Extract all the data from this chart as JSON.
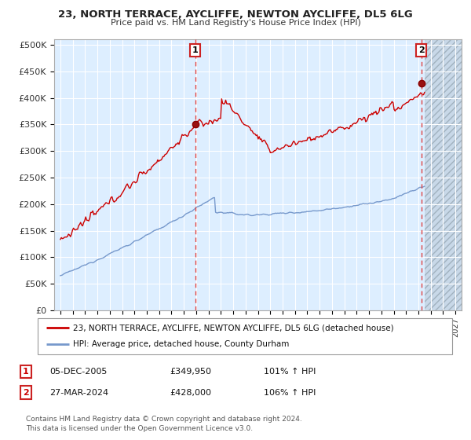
{
  "title": "23, NORTH TERRACE, AYCLIFFE, NEWTON AYCLIFFE, DL5 6LG",
  "subtitle": "Price paid vs. HM Land Registry's House Price Index (HPI)",
  "legend_line1": "23, NORTH TERRACE, AYCLIFFE, NEWTON AYCLIFFE, DL5 6LG (detached house)",
  "legend_line2": "HPI: Average price, detached house, County Durham",
  "sale1_date": "05-DEC-2005",
  "sale1_price": "£349,950",
  "sale1_hpi": "101% ↑ HPI",
  "sale2_date": "27-MAR-2024",
  "sale2_price": "£428,000",
  "sale2_hpi": "106% ↑ HPI",
  "footer": "Contains HM Land Registry data © Crown copyright and database right 2024.\nThis data is licensed under the Open Government Licence v3.0.",
  "red_color": "#cc0000",
  "blue_color": "#7799cc",
  "bg_color": "#ddeeff",
  "grid_color": "#ffffff",
  "dashed_line_color": "#dd4444",
  "sale1_year": 2005.92,
  "sale2_year": 2024.23,
  "sale1_value": 349950,
  "sale2_value": 428000,
  "ylim": [
    0,
    510000
  ],
  "xlim_start": 1994.5,
  "xlim_end": 2027.5,
  "yticks": [
    0,
    50000,
    100000,
    150000,
    200000,
    250000,
    300000,
    350000,
    400000,
    450000,
    500000
  ],
  "ytick_labels": [
    "£0",
    "£50K",
    "£100K",
    "£150K",
    "£200K",
    "£250K",
    "£300K",
    "£350K",
    "£400K",
    "£450K",
    "£500K"
  ],
  "xticks": [
    1995,
    1996,
    1997,
    1998,
    1999,
    2000,
    2001,
    2002,
    2003,
    2004,
    2005,
    2006,
    2007,
    2008,
    2009,
    2010,
    2011,
    2012,
    2013,
    2014,
    2015,
    2016,
    2017,
    2018,
    2019,
    2020,
    2021,
    2022,
    2023,
    2024,
    2025,
    2026,
    2027
  ]
}
